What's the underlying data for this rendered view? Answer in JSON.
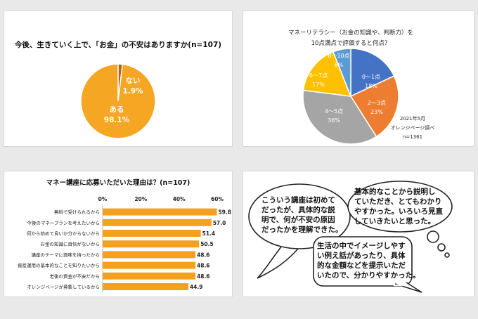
{
  "chart_data": [
    {
      "type": "pie",
      "title": "今後、生きていく上で、「お金」の不安はありますか(n=107)",
      "slices": [
        {
          "label": "ない",
          "value": 1.9,
          "value_label": "1.9%",
          "color": "#c55a11"
        },
        {
          "label": "ある",
          "value": 98.1,
          "value_label": "98.1%",
          "color": "#f5a623"
        }
      ]
    },
    {
      "type": "pie",
      "title_lines": [
        "マネーリテラシー（お金の知識や、判断力）を",
        "10点満点で評価すると何点？"
      ],
      "note_lines": [
        "2021年5月",
        "オレンジページ調べ",
        "n=1361"
      ],
      "slices": [
        {
          "label": "0～1点",
          "value": 18,
          "value_label": "18%",
          "color": "#4472c4"
        },
        {
          "label": "2～3点",
          "value": 23,
          "value_label": "23%",
          "color": "#ed7d31"
        },
        {
          "label": "4～5点",
          "value": 36,
          "value_label": "36%",
          "color": "#a5a5a5"
        },
        {
          "label": "6～7点",
          "value": 17,
          "value_label": "17%",
          "color": "#ffc000"
        },
        {
          "label": "8～10点",
          "value": 6,
          "value_label": "6%",
          "color": "#5b9bd5"
        }
      ]
    },
    {
      "type": "bar",
      "orientation": "horizontal",
      "title": "マネー講座に応募いただいた理由は？(n=107)",
      "xlim": [
        0,
        60
      ],
      "xticks": [
        "0%",
        "20%",
        "40%",
        "60%"
      ],
      "color": "#f5a01e",
      "categories": [
        "無料で受けられるから",
        "今後のマネープランを考えたいから",
        "何から始めて良いか分からないから",
        "お金の知識に自信がないから",
        "講座のテーマに興味を持ったから",
        "資産運用の基本的なことを知りたいから",
        "老後の資金が不安だから",
        "オレンジページが募集しているから"
      ],
      "values": [
        59.8,
        57.0,
        51.4,
        50.5,
        48.6,
        48.6,
        48.6,
        44.9
      ],
      "value_labels": [
        "59.8",
        "57.0",
        "51.4",
        "50.5",
        "48.6",
        "48.6",
        "48.6",
        "44.9"
      ]
    }
  ],
  "comments": [
    [
      "こういう講座は初めて",
      "だったが、具体的な説",
      "明で、何が不安の原因",
      "だったかを理解できた。"
    ],
    [
      "基本的なことから説明し",
      "ていただき、とてもわかり",
      "やすかった。いろいろ見直",
      "していきたいと思った。"
    ],
    [
      "生活の中でイメージしやす",
      "い例え話があったり、具体",
      "的な金額などを提示いただ",
      "いたので、分かりやすかった。"
    ]
  ]
}
